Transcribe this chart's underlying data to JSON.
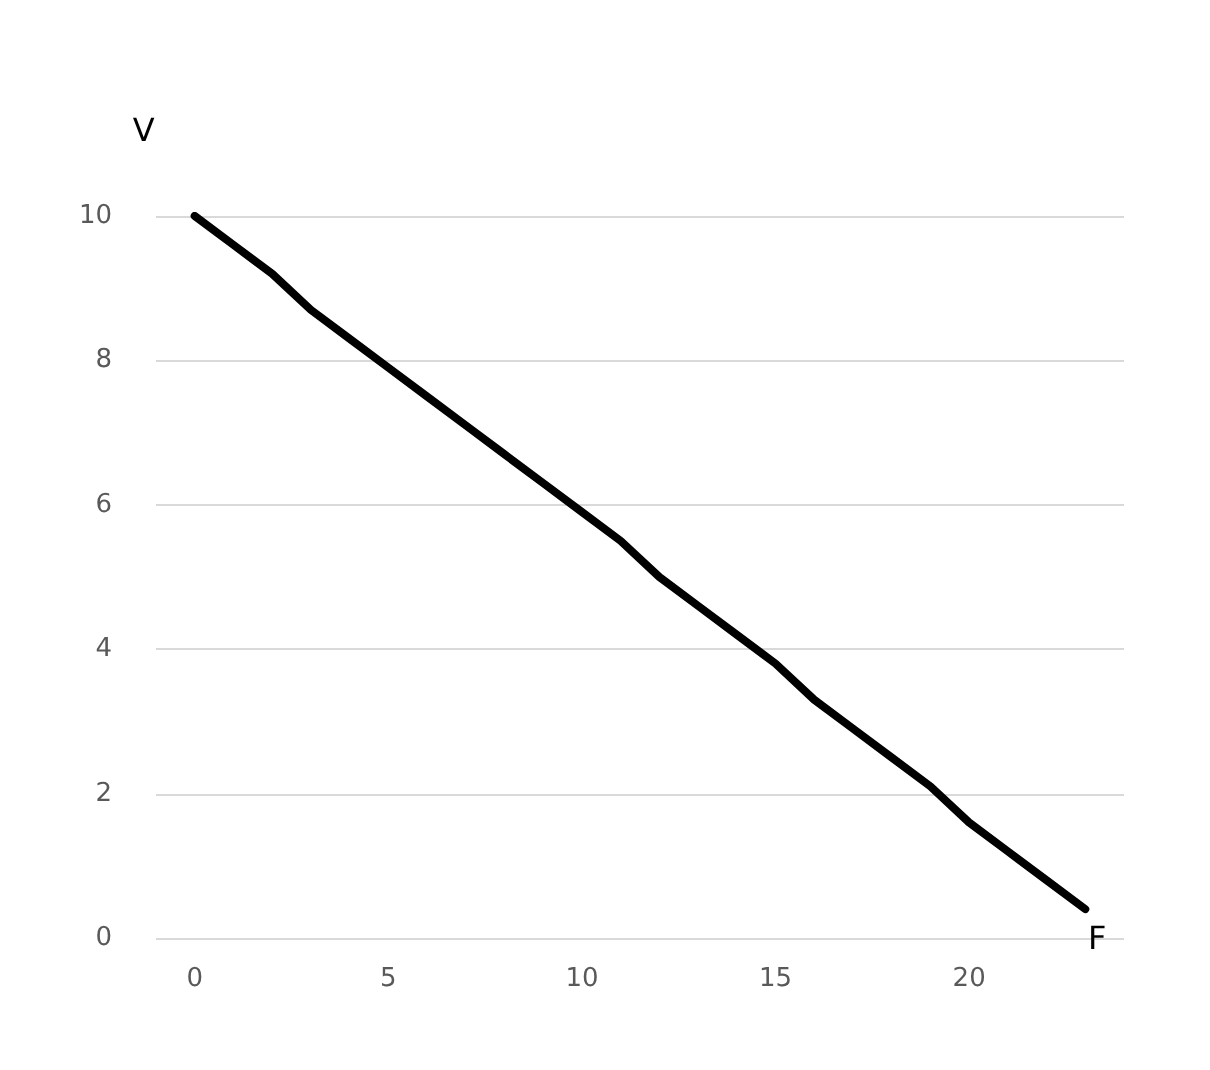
{
  "chart_data": {
    "type": "line",
    "xlabel": "F",
    "ylabel": "V",
    "x": [
      0,
      1,
      2,
      3,
      4,
      5,
      6,
      7,
      8,
      9,
      10,
      11,
      12,
      13,
      14,
      15,
      16,
      17,
      18,
      19,
      20,
      21,
      22,
      23
    ],
    "series": [
      {
        "color": "#000000",
        "values": [
          10,
          9.6,
          9.2,
          8.7,
          8.3,
          7.9,
          7.5,
          7.1,
          6.7,
          6.3,
          5.9,
          5.5,
          5.0,
          4.6,
          4.2,
          3.8,
          3.3,
          2.9,
          2.5,
          2.1,
          1.6,
          1.2,
          0.8,
          0.4
        ]
      }
    ],
    "xlim": [
      -1,
      24
    ],
    "xticks": [
      0,
      5,
      10,
      15,
      20
    ],
    "ylim": [
      0,
      10
    ],
    "yticks": [
      0,
      2,
      4,
      6,
      8,
      10
    ],
    "grid": "y",
    "marker": "none",
    "line_style": "solid"
  }
}
